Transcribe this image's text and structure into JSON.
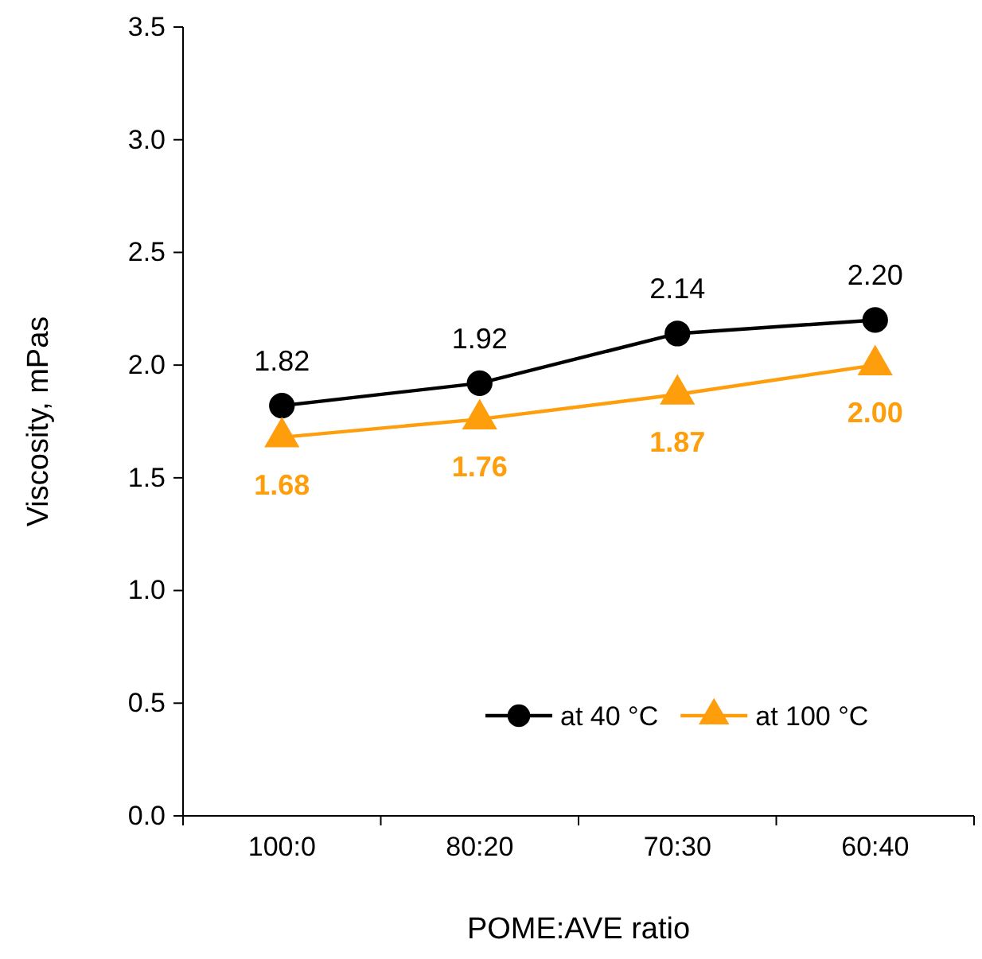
{
  "chart_data": {
    "type": "line",
    "xlabel": "POME:AVE ratio",
    "ylabel": "Viscosity, mPas",
    "categories": [
      "100:0",
      "80:20",
      "70:30",
      "60:40"
    ],
    "series": [
      {
        "name": "at 40 °C",
        "color": "#000000",
        "marker": "circle",
        "values": [
          1.82,
          1.92,
          2.14,
          2.2
        ],
        "value_labels": [
          "1.82",
          "1.92",
          "2.14",
          "2.20"
        ]
      },
      {
        "name": "at 100 °C",
        "color": "#ff9e0d",
        "marker": "triangle",
        "values": [
          1.68,
          1.76,
          1.87,
          2.0
        ],
        "value_labels": [
          "1.68",
          "1.76",
          "1.87",
          "2.00"
        ]
      }
    ],
    "ylim": [
      0,
      3.5
    ],
    "yticks": [
      {
        "value": 0,
        "label": "0.0"
      },
      {
        "value": 0.5,
        "label": "0.5"
      },
      {
        "value": 1,
        "label": "1.0"
      },
      {
        "value": 1.5,
        "label": "1.5"
      },
      {
        "value": 2,
        "label": "2.0"
      },
      {
        "value": 2.5,
        "label": "2.5"
      },
      {
        "value": 3,
        "label": "3.0"
      },
      {
        "value": 3.5,
        "label": "3.5"
      }
    ],
    "grid": false,
    "legend": "bottom right",
    "line_style": "solid"
  }
}
